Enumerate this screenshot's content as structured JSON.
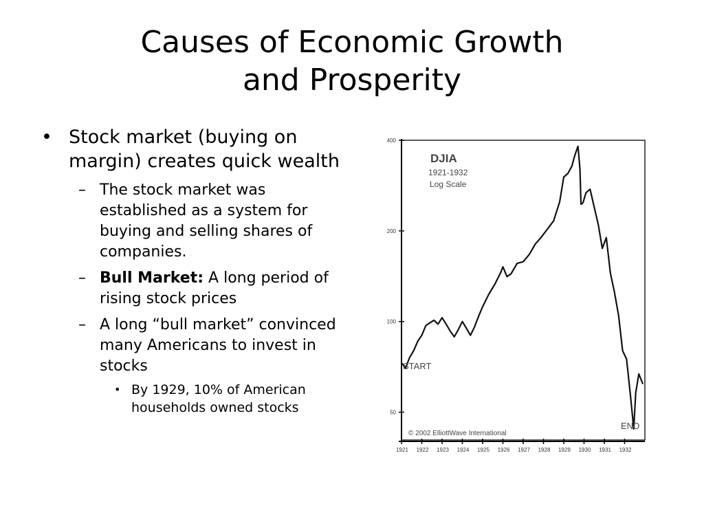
{
  "slide": {
    "title_line1": "Causes of Economic Growth",
    "title_line2": "and Prosperity"
  },
  "bullets": {
    "b1": "Stock market (buying on margin) creates quick wealth",
    "sub1": "The stock market was established as a system for buying and selling shares of companies.",
    "sub2_bold": "Bull Market:",
    "sub2_rest": " A long period of rising stock prices",
    "sub3": "A long “bull market” convinced many Americans to invest in stocks",
    "subsub1": "By 1929, 10% of American households owned stocks"
  },
  "chart_data": {
    "type": "line",
    "title": "DJIA",
    "subtitle_line1": "1921-1932",
    "subtitle_line2": "Log Scale",
    "y_scale": "log",
    "ylim": [
      40,
      400
    ],
    "y_ticks": [
      400,
      200,
      100,
      50
    ],
    "x_ticks": [
      "1921",
      "1922",
      "1923",
      "1924",
      "1925",
      "1926",
      "1927",
      "1928",
      "1929",
      "1930",
      "1931",
      "1932"
    ],
    "xlim": [
      1921.0,
      1933.0
    ],
    "annotations": {
      "start": "START",
      "end": "END",
      "copyright": "© 2002 ElliottWave International"
    },
    "grid": false,
    "series": [
      {
        "x": [
          1921.0,
          1921.2,
          1921.4,
          1921.6,
          1921.8,
          1922.0,
          1922.2,
          1922.4,
          1922.6,
          1922.8,
          1923.0,
          1923.2,
          1923.4,
          1923.6,
          1923.8,
          1924.0,
          1924.2,
          1924.4,
          1924.6,
          1924.8,
          1925.0,
          1925.3,
          1925.6,
          1925.9,
          1926.0,
          1926.2,
          1926.4,
          1926.7,
          1927.0,
          1927.3,
          1927.6,
          1927.9,
          1928.2,
          1928.5,
          1928.8,
          1929.0,
          1929.2,
          1929.4,
          1929.55,
          1929.7,
          1929.8,
          1929.85,
          1929.95,
          1930.1,
          1930.3,
          1930.5,
          1930.7,
          1930.9,
          1931.1,
          1931.3,
          1931.5,
          1931.7,
          1931.9,
          1932.1,
          1932.3,
          1932.45,
          1932.55,
          1932.7,
          1932.9
        ],
        "y": [
          73,
          70,
          76,
          80,
          86,
          90,
          97,
          99,
          101,
          98,
          103,
          98,
          93,
          89,
          94,
          100,
          95,
          90,
          96,
          104,
          112,
          123,
          133,
          146,
          152,
          141,
          144,
          156,
          158,
          167,
          181,
          191,
          203,
          216,
          250,
          302,
          310,
          328,
          357,
          382,
          320,
          245,
          248,
          268,
          275,
          240,
          210,
          175,
          190,
          145,
          125,
          105,
          80,
          75,
          56,
          44,
          58,
          67,
          62
        ]
      }
    ]
  }
}
